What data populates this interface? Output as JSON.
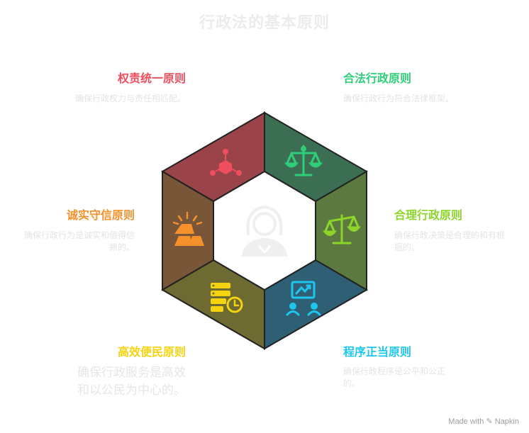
{
  "title": "行政法的基本原则",
  "colors": {
    "red": "#ef4e5e",
    "green": "#2fce79",
    "lime": "#8dd52b",
    "blue": "#1ec6ee",
    "yellow": "#f5d40f",
    "orange": "#f5902a"
  },
  "principles": [
    {
      "title": "权责统一原则",
      "desc": "确保行政权力与责任相匹配。",
      "icon": "network-cube-icon"
    },
    {
      "title": "合法行政原则",
      "desc": "确保行政行为符合法律框架。",
      "icon": "scales-icon"
    },
    {
      "title": "合理行政原则",
      "desc": "确保行政决策是合理的和有根据的。",
      "icon": "balance-icon"
    },
    {
      "title": "程序正当原则",
      "desc": "确保行政程序是公平和公正的。",
      "icon": "presentation-people-icon"
    },
    {
      "title": "高效便民原则",
      "desc": "确保行政服务是高效和以公民为中心的。",
      "icon": "server-clock-icon"
    },
    {
      "title": "诚实守信原则",
      "desc": "确保行政行为是诚实和值得信赖的。",
      "icon": "gold-bars-icon"
    }
  ],
  "center_icon": "judge-icon",
  "brand": "Made with ✎ Napkin"
}
